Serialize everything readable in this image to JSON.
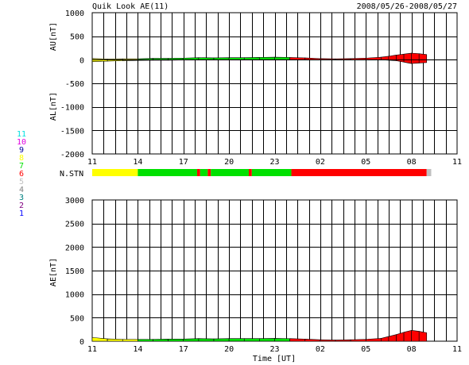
{
  "header": {
    "title": "Quik Look AE(11)",
    "date_range": "2008/05/26-2008/05/27"
  },
  "colors": {
    "ink": "#000000",
    "grid": "#000000",
    "background": "#ffffff"
  },
  "chart_data": [
    {
      "type": "area",
      "ylabel_top": "AU[nT]",
      "ylabel_bottom": "AL[nT]",
      "ylim": [
        -2000,
        1000
      ],
      "y_ticks": [
        1000,
        500,
        0,
        -500,
        -1000,
        -1500,
        -2000
      ],
      "x_tick_labels": [
        "11",
        "14",
        "17",
        "20",
        "23",
        "02",
        "05",
        "08",
        "11"
      ],
      "x_hours": [
        11,
        14,
        17,
        20,
        23,
        26,
        29,
        32,
        35
      ],
      "au_series": {
        "name": "AU",
        "x": [
          11.0,
          12.0,
          13.0,
          14.0,
          15.0,
          16.0,
          17.0,
          18.0,
          19.0,
          20.0,
          21.0,
          22.0,
          23.0,
          24.0,
          25.0,
          26.0,
          27.0,
          28.0,
          29.0,
          30.0,
          30.5,
          31.0,
          31.5,
          32.0,
          32.5,
          33.0
        ],
        "values": [
          25,
          15,
          20,
          20,
          30,
          30,
          35,
          45,
          40,
          45,
          45,
          50,
          55,
          50,
          40,
          25,
          20,
          25,
          35,
          55,
          75,
          100,
          120,
          140,
          130,
          110
        ]
      },
      "al_series": {
        "name": "AL",
        "x": [
          11.0,
          12.0,
          13.0,
          14.0,
          15.0,
          16.0,
          17.0,
          18.0,
          19.0,
          20.0,
          21.0,
          22.0,
          23.0,
          24.0,
          25.0,
          26.0,
          27.0,
          28.0,
          29.0,
          30.0,
          30.5,
          31.0,
          31.5,
          32.0,
          32.5,
          33.0
        ],
        "values": [
          -40,
          -30,
          -20,
          -15,
          -10,
          -10,
          -5,
          -5,
          -5,
          -5,
          0,
          0,
          0,
          0,
          0,
          0,
          0,
          0,
          0,
          0,
          -10,
          -20,
          -50,
          -80,
          -70,
          -60
        ]
      }
    },
    {
      "type": "bar",
      "label": "N.STN",
      "segments": [
        {
          "from": 11.0,
          "to": 14.0,
          "stations": 8
        },
        {
          "from": 14.0,
          "to": 17.9,
          "stations": 7
        },
        {
          "from": 17.9,
          "to": 18.1,
          "stations": 6
        },
        {
          "from": 18.1,
          "to": 18.6,
          "stations": 7
        },
        {
          "from": 18.6,
          "to": 18.8,
          "stations": 6
        },
        {
          "from": 18.8,
          "to": 21.3,
          "stations": 7
        },
        {
          "from": 21.3,
          "to": 21.5,
          "stations": 6
        },
        {
          "from": 21.5,
          "to": 24.1,
          "stations": 7
        },
        {
          "from": 24.1,
          "to": 33.0,
          "stations": 6
        },
        {
          "from": 33.0,
          "to": 33.3,
          "stations": 5
        }
      ],
      "legend": [
        {
          "n": "11",
          "color": "#00e0e0"
        },
        {
          "n": "10",
          "color": "#e000e0"
        },
        {
          "n": "9",
          "color": "#0000a0"
        },
        {
          "n": "8",
          "color": "#ffff00"
        },
        {
          "n": "7",
          "color": "#00e000"
        },
        {
          "n": "6",
          "color": "#ff0000"
        },
        {
          "n": "5",
          "color": "#c0c0c0"
        },
        {
          "n": "4",
          "color": "#808080"
        },
        {
          "n": "3",
          "color": "#008080"
        },
        {
          "n": "2",
          "color": "#800080"
        },
        {
          "n": "1",
          "color": "#0000ff"
        }
      ]
    },
    {
      "type": "area",
      "ylabel": "AE[nT]",
      "xlabel": "Time [UT]",
      "ylim": [
        0,
        3000
      ],
      "y_ticks": [
        3000,
        2500,
        2000,
        1500,
        1000,
        500,
        0
      ],
      "x_tick_labels": [
        "11",
        "14",
        "17",
        "20",
        "23",
        "02",
        "05",
        "08",
        "11"
      ],
      "x_hours": [
        11,
        14,
        17,
        20,
        23,
        26,
        29,
        32,
        35
      ],
      "series": [
        {
          "name": "AE",
          "x": [
            11.0,
            12.0,
            13.0,
            14.0,
            15.0,
            16.0,
            17.0,
            18.0,
            19.0,
            20.0,
            21.0,
            22.0,
            23.0,
            24.0,
            25.0,
            26.0,
            27.0,
            28.0,
            29.0,
            30.0,
            30.5,
            31.0,
            31.5,
            32.0,
            32.5,
            33.0
          ],
          "values": [
            80,
            50,
            40,
            40,
            40,
            45,
            45,
            55,
            50,
            55,
            55,
            55,
            60,
            55,
            45,
            30,
            25,
            30,
            40,
            60,
            100,
            140,
            190,
            230,
            210,
            180
          ]
        }
      ]
    }
  ]
}
